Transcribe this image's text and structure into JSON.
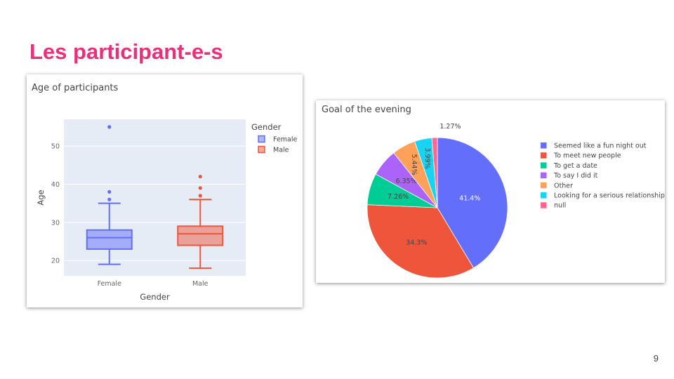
{
  "slide": {
    "title": "Les participant-e-s",
    "page_number": "9"
  },
  "chart_data": [
    {
      "type": "box",
      "title": "Age of participants",
      "xlabel": "Gender",
      "ylabel": "Age",
      "ylim": [
        16,
        57
      ],
      "yticks": [
        20,
        30,
        40,
        50
      ],
      "grid": true,
      "legend": {
        "title": "Gender",
        "position": "top-right"
      },
      "series": [
        {
          "name": "Female",
          "category": "Female",
          "color": "#636efa",
          "fill": "rgba(99,110,250,0.5)",
          "min": 19,
          "q1": 23,
          "median": 26,
          "q3": 28,
          "max": 35,
          "outliers": [
            36,
            38,
            55
          ]
        },
        {
          "name": "Male",
          "category": "Male",
          "color": "#ef553b",
          "fill": "rgba(239,85,59,0.5)",
          "min": 18,
          "q1": 24,
          "median": 27,
          "q3": 29,
          "max": 36,
          "outliers": [
            37,
            39,
            42
          ]
        }
      ]
    },
    {
      "type": "pie",
      "title": "Goal of the evening",
      "legend": {
        "position": "right"
      },
      "slices": [
        {
          "label": "Seemed like a fun night out",
          "value": 41.4,
          "pct": "41.4%",
          "color": "#636efa",
          "text_color": "#ffffff"
        },
        {
          "label": "To meet new people",
          "value": 34.3,
          "pct": "34.3%",
          "color": "#ef553b",
          "text_color": "#444444"
        },
        {
          "label": "To get a date",
          "value": 7.26,
          "pct": "7.26%",
          "color": "#00cc96",
          "text_color": "#444444"
        },
        {
          "label": "To say I did it",
          "value": 6.35,
          "pct": "6.35%",
          "color": "#ab63fa",
          "text_color": "#444444"
        },
        {
          "label": "Other",
          "value": 5.44,
          "pct": "5.44%",
          "color": "#ffa15a",
          "text_color": "#444444"
        },
        {
          "label": "Looking for a serious relationship",
          "value": 3.99,
          "pct": "3.99%",
          "color": "#19d3f3",
          "text_color": "#444444"
        },
        {
          "label": "null",
          "value": 1.27,
          "pct": "1.27%",
          "color": "#ff6692",
          "text_color": "#444444"
        }
      ]
    }
  ]
}
